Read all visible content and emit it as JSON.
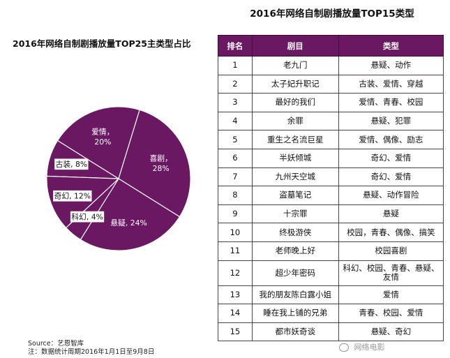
{
  "pie_chart_title": "2016年网络自制剧播放量TOP25主类型占比",
  "table_title": "2016年网络自制剧播放量TOP15类型",
  "chart_data": [
    {
      "type": "pie",
      "title": "2016年网络自制剧播放量TOP25主类型占比",
      "slices": [
        {
          "name": "古装",
          "value": 8,
          "label_name": "古装",
          "label_value": "8%"
        },
        {
          "name": "爱情",
          "value": 20,
          "label_name": "爱情",
          "label_value": "20%"
        },
        {
          "name": "喜剧",
          "value": 28,
          "label_name": "喜剧",
          "label_value": "28%"
        },
        {
          "name": "悬疑",
          "value": 24,
          "label_name": "悬疑",
          "label_value": "24%"
        },
        {
          "name": "科幻",
          "value": 4,
          "label_name": "科幻",
          "label_value": "4%"
        },
        {
          "name": "奇幻",
          "value": 12,
          "label_name": "奇幻",
          "label_value": "12%"
        }
      ],
      "slice_color": "#6b1863",
      "border_color": "#ffffff",
      "label_color": "#ffffff",
      "label_box_color": "#ffffff"
    },
    {
      "type": "table",
      "title": "2016年网络自制剧播放量TOP15类型",
      "columns": [
        "排名",
        "剧目",
        "类型"
      ],
      "rows": [
        [
          "1",
          "老九门",
          "悬疑、动作"
        ],
        [
          "2",
          "太子妃升职记",
          "古装、爱情、穿越"
        ],
        [
          "3",
          "最好的我们",
          "爱情、青春、校园"
        ],
        [
          "4",
          "余罪",
          "悬疑、犯罪"
        ],
        [
          "5",
          "重生之名流巨星",
          "爱情、偶像、励志"
        ],
        [
          "6",
          "半妖倾城",
          "奇幻、爱情"
        ],
        [
          "7",
          "九州天空城",
          "奇幻、爱情"
        ],
        [
          "8",
          "盗墓笔记",
          "悬疑、动作冒险"
        ],
        [
          "9",
          "十宗罪",
          "悬疑"
        ],
        [
          "10",
          "终极游侠",
          "校园，青春、偶像、搞笑"
        ],
        [
          "11",
          "老师晚上好",
          "校园喜剧"
        ],
        [
          "12",
          "超少年密码",
          "科幻、校园、青春、悬疑、友情"
        ],
        [
          "13",
          "我的朋友陈白露小姐",
          "爱情"
        ],
        [
          "14",
          "睡在我上铺的兄弟",
          "青春、校园、爱情"
        ],
        [
          "15",
          "都市妖奇谈",
          "悬疑、奇幻"
        ]
      ],
      "header_color": "#6b1863"
    }
  ],
  "source": {
    "line1": "Source：艺恩智库",
    "line2": "注：数据统计周期2016年1月1日至9月8日"
  },
  "watermark": "网络电影"
}
